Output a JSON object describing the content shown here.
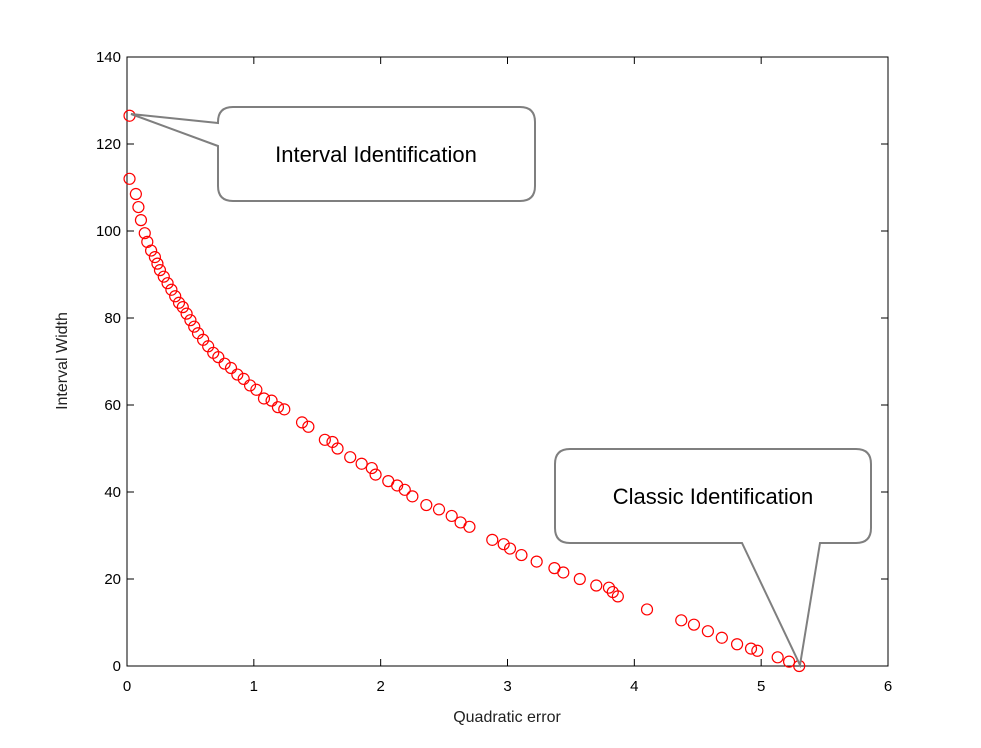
{
  "chart_data": {
    "type": "scatter",
    "title": "",
    "xlabel": "Quadratic error",
    "ylabel": "Interval Width",
    "xlim": [
      0,
      6
    ],
    "ylim": [
      0,
      140
    ],
    "xticks": [
      "0",
      "1",
      "2",
      "3",
      "4",
      "5",
      "6"
    ],
    "yticks": [
      "0",
      "20",
      "40",
      "60",
      "80",
      "100",
      "120",
      "140"
    ],
    "grid": false,
    "marker": "open-circle",
    "marker_color": "#ff0000",
    "series": [
      {
        "x": [
          0.02,
          0.02,
          0.07,
          0.09,
          0.11,
          0.14,
          0.16,
          0.19,
          0.22,
          0.24,
          0.26,
          0.29,
          0.32,
          0.35,
          0.38,
          0.41,
          0.44,
          0.47,
          0.5,
          0.53,
          0.56,
          0.6,
          0.64,
          0.68,
          0.72,
          0.77,
          0.82,
          0.87,
          0.92,
          0.97,
          1.02,
          1.08,
          1.14,
          1.19,
          1.24,
          1.38,
          1.43,
          1.56,
          1.62,
          1.66,
          1.76,
          1.85,
          1.93,
          1.96,
          2.06,
          2.13,
          2.19,
          2.25,
          2.36,
          2.46,
          2.56,
          2.63,
          2.7,
          2.88,
          2.97,
          3.02,
          3.11,
          3.23,
          3.37,
          3.44,
          3.57,
          3.7,
          3.8,
          3.83,
          3.87,
          4.1,
          4.37,
          4.47,
          4.58,
          4.69,
          4.81,
          4.92,
          4.97,
          5.13,
          5.22,
          5.3
        ],
        "y": [
          126.5,
          112.0,
          108.5,
          105.5,
          102.5,
          99.5,
          97.5,
          95.5,
          94.0,
          92.5,
          91.0,
          89.5,
          88.0,
          86.5,
          85.0,
          83.5,
          82.5,
          81.0,
          79.5,
          78.0,
          76.5,
          75.0,
          73.5,
          72.0,
          71.0,
          69.5,
          68.5,
          67.0,
          66.0,
          64.5,
          63.5,
          61.5,
          61.0,
          59.5,
          59.0,
          56.0,
          55.0,
          52.0,
          51.5,
          50.0,
          48.0,
          46.5,
          45.5,
          44.0,
          42.5,
          41.5,
          40.5,
          39.0,
          37.0,
          36.0,
          34.5,
          33.0,
          32.0,
          29.0,
          28.0,
          27.0,
          25.5,
          24.0,
          22.5,
          21.5,
          20.0,
          18.5,
          18.0,
          17.0,
          16.0,
          13.0,
          10.5,
          9.5,
          8.0,
          6.5,
          5.0,
          4.0,
          3.5,
          2.0,
          1.0,
          0.0
        ]
      }
    ],
    "annotations": [
      {
        "text": "Interval Identification",
        "x": 0.02,
        "y": 126.5
      },
      {
        "text": "Classic Identification",
        "x": 5.3,
        "y": 0.0
      }
    ]
  }
}
